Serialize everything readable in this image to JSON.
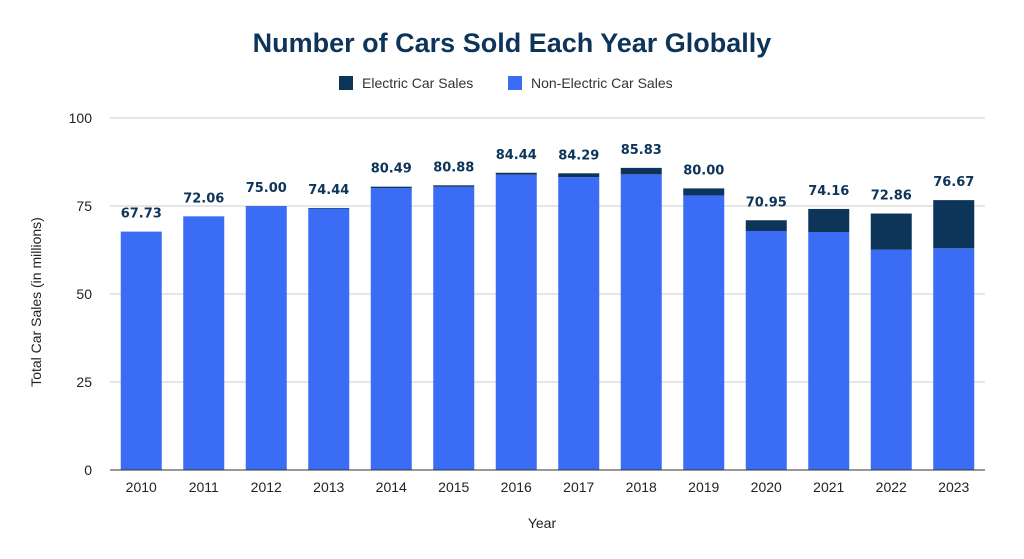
{
  "chart_data": {
    "type": "bar",
    "stacked": true,
    "title": "Number of Cars Sold Each Year Globally",
    "xlabel": "Year",
    "ylabel": "Total Car Sales (in millions)",
    "ylim": [
      0,
      100
    ],
    "yticks": [
      "0",
      "25",
      "50",
      "75",
      "100"
    ],
    "grid": true,
    "legend_position": "top-center",
    "categories": [
      "2010",
      "2011",
      "2012",
      "2013",
      "2014",
      "2015",
      "2016",
      "2017",
      "2018",
      "2019",
      "2020",
      "2021",
      "2022",
      "2023"
    ],
    "series": [
      {
        "name": "Non-Electric Car Sales",
        "color": "#3b6cf6",
        "values": [
          67.73,
          72.06,
          74.96,
          74.27,
          80.1,
          80.47,
          83.9,
          83.2,
          84.0,
          78.0,
          67.9,
          67.6,
          62.6,
          63.0
        ]
      },
      {
        "name": "Electric Car Sales",
        "color": "#0d3459",
        "values": [
          0.0,
          0.0,
          0.04,
          0.17,
          0.39,
          0.41,
          0.54,
          1.09,
          1.83,
          2.0,
          3.05,
          6.56,
          10.26,
          13.67
        ]
      }
    ],
    "totals_labels": [
      "67.73",
      "72.06",
      "75.00",
      "74.44",
      "80.49",
      "80.88",
      "84.44",
      "84.29",
      "85.83",
      "80.00",
      "70.95",
      "74.16",
      "72.86",
      "76.67"
    ]
  }
}
